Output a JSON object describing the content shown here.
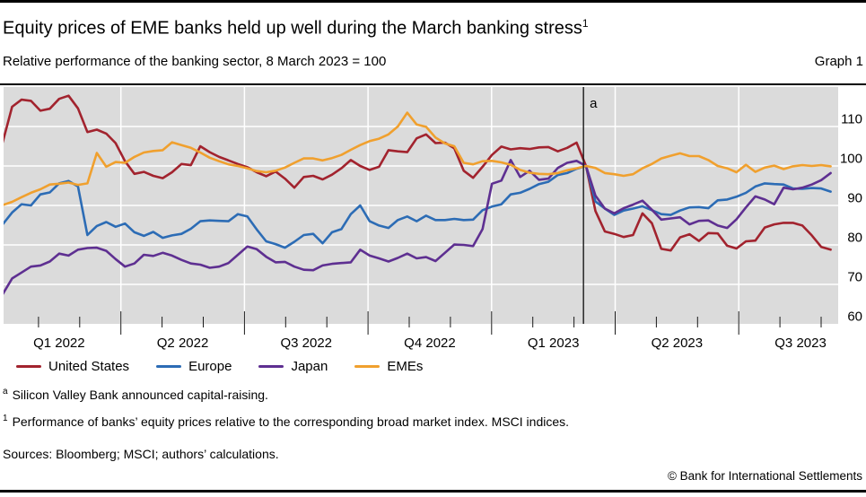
{
  "header": {
    "title": "Equity prices of EME banks held up well during the March banking stress",
    "title_superscript": "1",
    "subtitle": "Relative performance of the banking sector, 8 March 2023 = 100",
    "graph_label": "Graph 1"
  },
  "chart_data": {
    "type": "line",
    "title": "Equity prices of EME banks held up well during the March banking stress",
    "subtitle": "Relative performance of the banking sector, 8 March 2023 = 100",
    "index_note": "8 March 2023 = 100",
    "sampling": "weekly",
    "x_start": "2022-01-05",
    "x_end": "2023-09-08",
    "x_tick_labels": [
      "Q1 2022",
      "Q2 2022",
      "Q3 2022",
      "Q4 2022",
      "Q1 2023",
      "Q2 2023",
      "Q3 2023"
    ],
    "ylim": [
      60,
      120
    ],
    "yticks": [
      60,
      70,
      80,
      90,
      100,
      110
    ],
    "grid": true,
    "legend_position": "bottom",
    "plot_bg": "#dbdbdb",
    "grid_color": "#ffffff",
    "annotation": {
      "label": "a",
      "date": "2023-03-08"
    },
    "series": [
      {
        "name": "United States",
        "color": "#a2232e",
        "values": [
          106,
          115,
          116.8,
          116.5,
          114,
          114.5,
          117,
          117.8,
          114.6,
          108.6,
          109.2,
          108.2,
          105.8,
          101.2,
          98,
          98.5,
          97.5,
          96.9,
          98.4,
          100.5,
          100.2,
          105,
          103.5,
          102.3,
          101.4,
          100.5,
          99.7,
          98.4,
          97.4,
          98.6,
          96.8,
          94.5,
          97.2,
          97.5,
          96.6,
          97.8,
          99.4,
          101.5,
          100,
          99,
          99.8,
          104,
          103.7,
          103.5,
          107,
          108,
          105.8,
          105.9,
          104.5,
          98.8,
          97,
          99.8,
          102.8,
          104.9,
          104.2,
          104.5,
          104.3,
          104.7,
          104.8,
          103.7,
          104.6,
          105.9,
          100,
          88.6,
          83.4,
          82.8,
          82,
          82.5,
          88,
          85.5,
          79,
          78.6,
          81.9,
          82.7,
          81,
          83,
          82.9,
          79.8,
          79.1,
          80.9,
          81.1,
          84.4,
          85.2,
          85.6,
          85.6,
          84.9,
          82.4,
          79.5,
          78.8
        ]
      },
      {
        "name": "Europe",
        "color": "#2c6cb5",
        "values": [
          85.2,
          88.2,
          90.3,
          90,
          92.8,
          93.3,
          95.6,
          96.2,
          94.8,
          82.5,
          84.8,
          85.8,
          84.6,
          85.4,
          83.2,
          82.3,
          83.3,
          81.8,
          82.4,
          82.8,
          84.1,
          86,
          86.2,
          86.1,
          86,
          87.8,
          87.2,
          83.9,
          80.9,
          80.2,
          79.3,
          80.8,
          82.5,
          82.8,
          80.4,
          83.2,
          84,
          87.8,
          90,
          86,
          84.9,
          84.3,
          86.3,
          87.2,
          86,
          87.4,
          86.3,
          86.3,
          86.6,
          86.3,
          86.4,
          88.8,
          89.7,
          90.3,
          92.8,
          93.2,
          94.2,
          95.4,
          96,
          97.7,
          98.2,
          99.3,
          100,
          91,
          89.2,
          87.6,
          88.7,
          89.2,
          89.8,
          88.8,
          87.8,
          87.6,
          88.7,
          89.5,
          89.6,
          89.3,
          91.3,
          91.5,
          92.2,
          93.2,
          94.8,
          95.6,
          95.4,
          95.3,
          94.3,
          94.2,
          94.4,
          94.3,
          93.5
        ]
      },
      {
        "name": "Japan",
        "color": "#5e2f91",
        "values": [
          67.5,
          71.5,
          73,
          74.5,
          74.8,
          75.8,
          77.8,
          77.3,
          78.8,
          79.2,
          79.3,
          78.5,
          76.4,
          74.5,
          75.3,
          77.5,
          77.2,
          78,
          77.3,
          76.2,
          75.3,
          75,
          74.2,
          74.5,
          75.4,
          77.5,
          79.6,
          78.9,
          77,
          75.6,
          75.7,
          74.5,
          73.7,
          73.6,
          74.8,
          75.2,
          75.4,
          75.6,
          78.8,
          77.3,
          76.6,
          75.8,
          76.7,
          77.8,
          76.6,
          76.9,
          75.9,
          78,
          80.1,
          80,
          79.7,
          84,
          95.5,
          96.3,
          101.5,
          97.2,
          98.8,
          96.5,
          96.8,
          99.5,
          100.8,
          101.3,
          100,
          92.5,
          89.2,
          88,
          89.3,
          90.2,
          91.2,
          88.9,
          86.4,
          86.7,
          87,
          85.2,
          86.1,
          86.2,
          84.9,
          84.3,
          86.5,
          89.5,
          92.3,
          91.5,
          90.3,
          94.5,
          94.1,
          94.5,
          95.3,
          96.4,
          98.2
        ]
      },
      {
        "name": "EMEs",
        "color": "#f0a02e",
        "values": [
          90.1,
          90.9,
          92.1,
          93.2,
          94.1,
          95.3,
          95.5,
          95.8,
          95.2,
          95.6,
          103.3,
          99.8,
          101,
          100.8,
          102.3,
          103.4,
          103.8,
          104,
          106,
          105.3,
          104.6,
          103.4,
          102.1,
          101.2,
          100.4,
          100,
          99.4,
          98.7,
          98.4,
          98.8,
          99.6,
          100.8,
          101.9,
          101.9,
          101.4,
          102,
          102.8,
          104.1,
          105.3,
          106.3,
          106.9,
          108,
          110,
          113.5,
          110.5,
          109.9,
          107.2,
          105.7,
          105,
          100.8,
          100.4,
          101.2,
          101.3,
          100.9,
          100.3,
          99,
          98.3,
          98,
          97.9,
          98.2,
          98.9,
          99.4,
          100,
          99.5,
          98.2,
          97.9,
          97.5,
          97.9,
          99.4,
          100.5,
          101.9,
          102.6,
          103.2,
          102.5,
          102.5,
          101.5,
          100,
          99.4,
          98.4,
          100.3,
          98.5,
          99.6,
          100.1,
          99.2,
          99.9,
          100.2,
          100,
          100.2,
          99.9
        ]
      }
    ]
  },
  "footnotes": [
    {
      "marker": "a",
      "text": "Silicon Valley Bank announced capital-raising."
    },
    {
      "marker": "1",
      "text": "Performance of banks’ equity prices relative to the corresponding broad market index. MSCI indices."
    }
  ],
  "sources": "Sources: Bloomberg; MSCI; authors’ calculations.",
  "copyright": "© Bank for International Settlements"
}
